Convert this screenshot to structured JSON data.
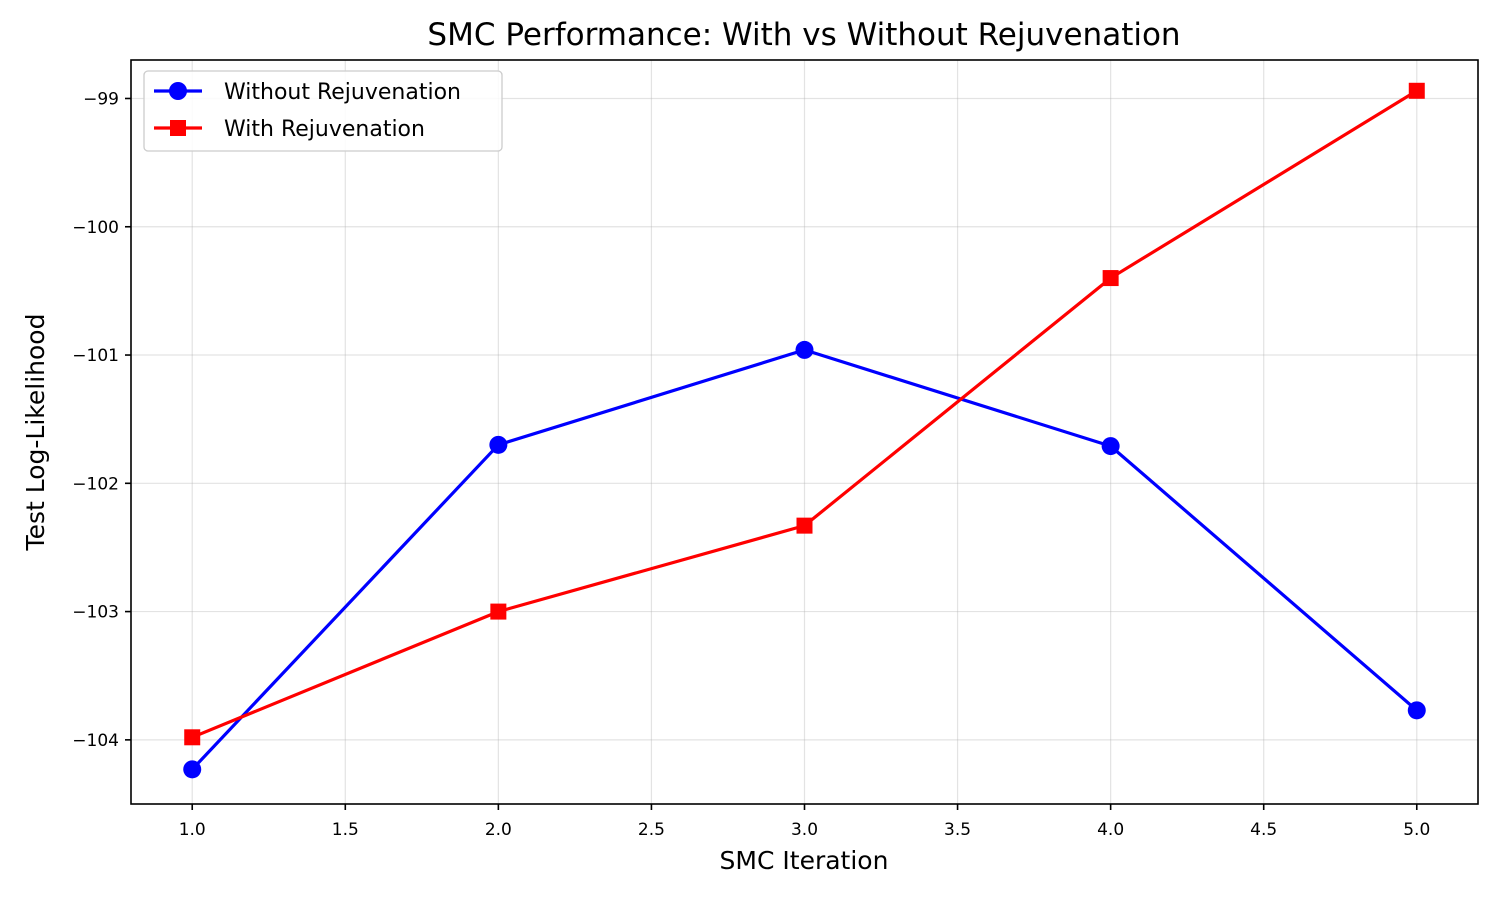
{
  "chart_data": {
    "type": "line",
    "title": "SMC Performance: With vs Without Rejuvenation",
    "xlabel": "SMC Iteration",
    "ylabel": "Test Log-Likelihood",
    "x": [
      1,
      2,
      3,
      4,
      5
    ],
    "xlim": [
      0.8,
      5.2
    ],
    "ylim": [
      -104.5,
      -98.7
    ],
    "xticks": [
      1.0,
      1.5,
      2.0,
      2.5,
      3.0,
      3.5,
      4.0,
      4.5,
      5.0
    ],
    "xtick_labels": [
      "1.0",
      "1.5",
      "2.0",
      "2.5",
      "3.0",
      "3.5",
      "4.0",
      "4.5",
      "5.0"
    ],
    "yticks": [
      -99,
      -100,
      -101,
      -102,
      -103,
      -104
    ],
    "ytick_labels": [
      "−99",
      "−100",
      "−101",
      "−102",
      "−103",
      "−104"
    ],
    "grid": true,
    "legend_position": "top-left",
    "series": [
      {
        "name": "Without Rejuvenation",
        "values": [
          -104.23,
          -101.7,
          -100.96,
          -101.71,
          -103.77
        ],
        "color": "#0000ff",
        "marker": "circle"
      },
      {
        "name": "With Rejuvenation",
        "values": [
          -103.98,
          -103.0,
          -102.33,
          -100.4,
          -98.94
        ],
        "color": "#ff0000",
        "marker": "square"
      }
    ]
  }
}
